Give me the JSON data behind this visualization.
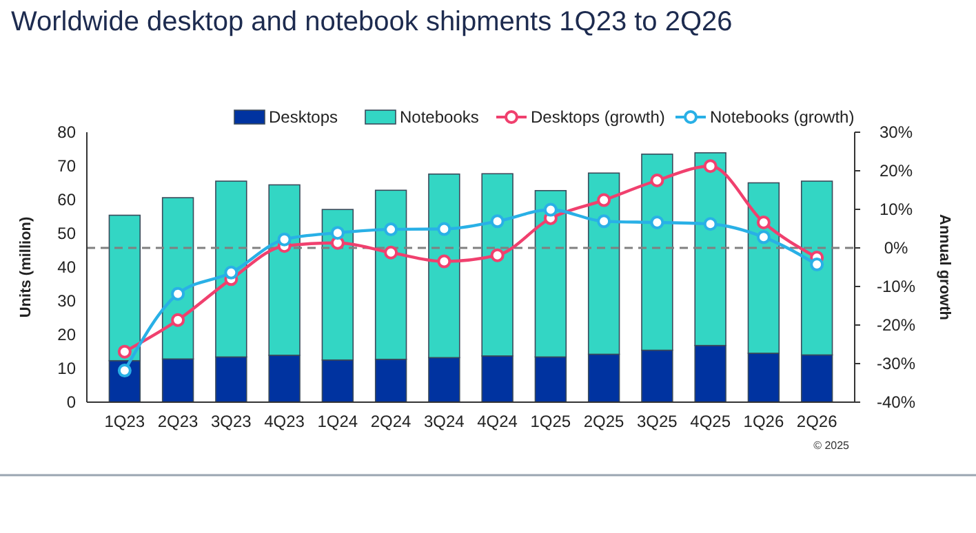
{
  "chart_data": {
    "type": "bar",
    "title": "Worldwide desktop and notebook shipments 1Q23 to 2Q26",
    "ylabel": "Units (million)",
    "y2label": "Annual growth",
    "categories": [
      "1Q23",
      "2Q23",
      "3Q23",
      "4Q23",
      "1Q24",
      "2Q24",
      "3Q24",
      "4Q24",
      "1Q25",
      "2Q25",
      "3Q25",
      "4Q25",
      "1Q26",
      "2Q26"
    ],
    "stacked": true,
    "series": [
      {
        "name": "Desktops",
        "color": "#0033a0",
        "values": [
          12.3,
          12.8,
          13.4,
          13.9,
          12.5,
          12.7,
          13.2,
          13.7,
          13.4,
          14.2,
          15.4,
          16.8,
          14.5,
          14.0
        ]
      },
      {
        "name": "Notebooks",
        "color": "#33d6c4",
        "values": [
          43.1,
          47.8,
          52.1,
          50.5,
          44.6,
          50.1,
          54.4,
          54.0,
          49.3,
          53.7,
          58.1,
          57.1,
          50.5,
          51.5
        ]
      },
      {
        "name": "Desktops (growth)",
        "type": "line",
        "axis": "y2",
        "color": "#f0406e",
        "values": [
          -26.9,
          -18.7,
          -8.1,
          0.5,
          1.3,
          -1.2,
          -3.5,
          -1.9,
          7.7,
          12.4,
          17.5,
          21.2,
          6.6,
          -2.5
        ]
      },
      {
        "name": "Notebooks (growth)",
        "type": "line",
        "axis": "y2",
        "color": "#29b0e6",
        "values": [
          -31.8,
          -11.9,
          -6.4,
          2.2,
          3.9,
          4.8,
          4.9,
          6.9,
          9.9,
          6.9,
          6.6,
          6.2,
          2.8,
          -4.3
        ]
      }
    ],
    "ylim": [
      0,
      80
    ],
    "yticks": [
      0,
      10,
      20,
      30,
      40,
      50,
      60,
      70,
      80
    ],
    "y2lim": [
      -40,
      30
    ],
    "y2ticks": [
      {
        "value": -40,
        "label": "-40%"
      },
      {
        "value": -30,
        "label": "-30%"
      },
      {
        "value": -20,
        "label": "-20%"
      },
      {
        "value": -10,
        "label": "-10%"
      },
      {
        "value": 0,
        "label": "0%"
      },
      {
        "value": 10,
        "label": "10%"
      },
      {
        "value": 20,
        "label": "20%"
      },
      {
        "value": 30,
        "label": "30%"
      }
    ],
    "ref_lines": [
      {
        "axis": "y2",
        "value": 0,
        "color": "#808080",
        "line_style": "dashed"
      }
    ],
    "marker": "circle",
    "legend": "top",
    "grid": false,
    "annotations": [
      "© 2025"
    ]
  }
}
